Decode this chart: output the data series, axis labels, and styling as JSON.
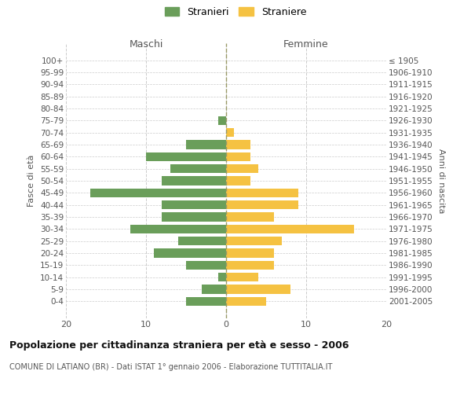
{
  "age_groups": [
    "100+",
    "95-99",
    "90-94",
    "85-89",
    "80-84",
    "75-79",
    "70-74",
    "65-69",
    "60-64",
    "55-59",
    "50-54",
    "45-49",
    "40-44",
    "35-39",
    "30-34",
    "25-29",
    "20-24",
    "15-19",
    "10-14",
    "5-9",
    "0-4"
  ],
  "birth_years": [
    "≤ 1905",
    "1906-1910",
    "1911-1915",
    "1916-1920",
    "1921-1925",
    "1926-1930",
    "1931-1935",
    "1936-1940",
    "1941-1945",
    "1946-1950",
    "1951-1955",
    "1956-1960",
    "1961-1965",
    "1966-1970",
    "1971-1975",
    "1976-1980",
    "1981-1985",
    "1986-1990",
    "1991-1995",
    "1996-2000",
    "2001-2005"
  ],
  "maschi": [
    0,
    0,
    0,
    0,
    0,
    1,
    0,
    5,
    10,
    7,
    8,
    17,
    8,
    8,
    12,
    6,
    9,
    5,
    1,
    3,
    5
  ],
  "femmine": [
    0,
    0,
    0,
    0,
    0,
    0,
    1,
    3,
    3,
    4,
    3,
    9,
    9,
    6,
    16,
    7,
    6,
    6,
    4,
    8,
    5
  ],
  "color_maschi": "#6a9e5a",
  "color_femmine": "#f5c242",
  "title_main": "Popolazione per cittadinanza straniera per età e sesso - 2006",
  "title_sub": "COMUNE DI LATIANO (BR) - Dati ISTAT 1° gennaio 2006 - Elaborazione TUTTITALIA.IT",
  "legend_maschi": "Stranieri",
  "legend_femmine": "Straniere",
  "xlabel_left": "Maschi",
  "xlabel_right": "Femmine",
  "ylabel_left": "Fasce di età",
  "ylabel_right": "Anni di nascita",
  "xlim": 20,
  "background_color": "#ffffff",
  "grid_color": "#cccccc"
}
